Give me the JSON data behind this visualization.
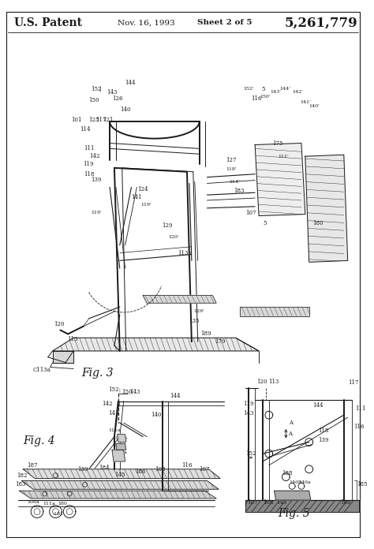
{
  "bg_color": "#ffffff",
  "lc": "#1a1a1a",
  "title_left": "U.S. Patent",
  "title_date": "Nov. 16, 1993",
  "title_sheet": "Sheet 2 of 5",
  "title_patent": "5,261,779",
  "fig3_label": "Fig. 3",
  "fig4_label": "Fig. 4",
  "fig5_label": "Fig. 5",
  "lw": 0.8,
  "thk": 1.4
}
